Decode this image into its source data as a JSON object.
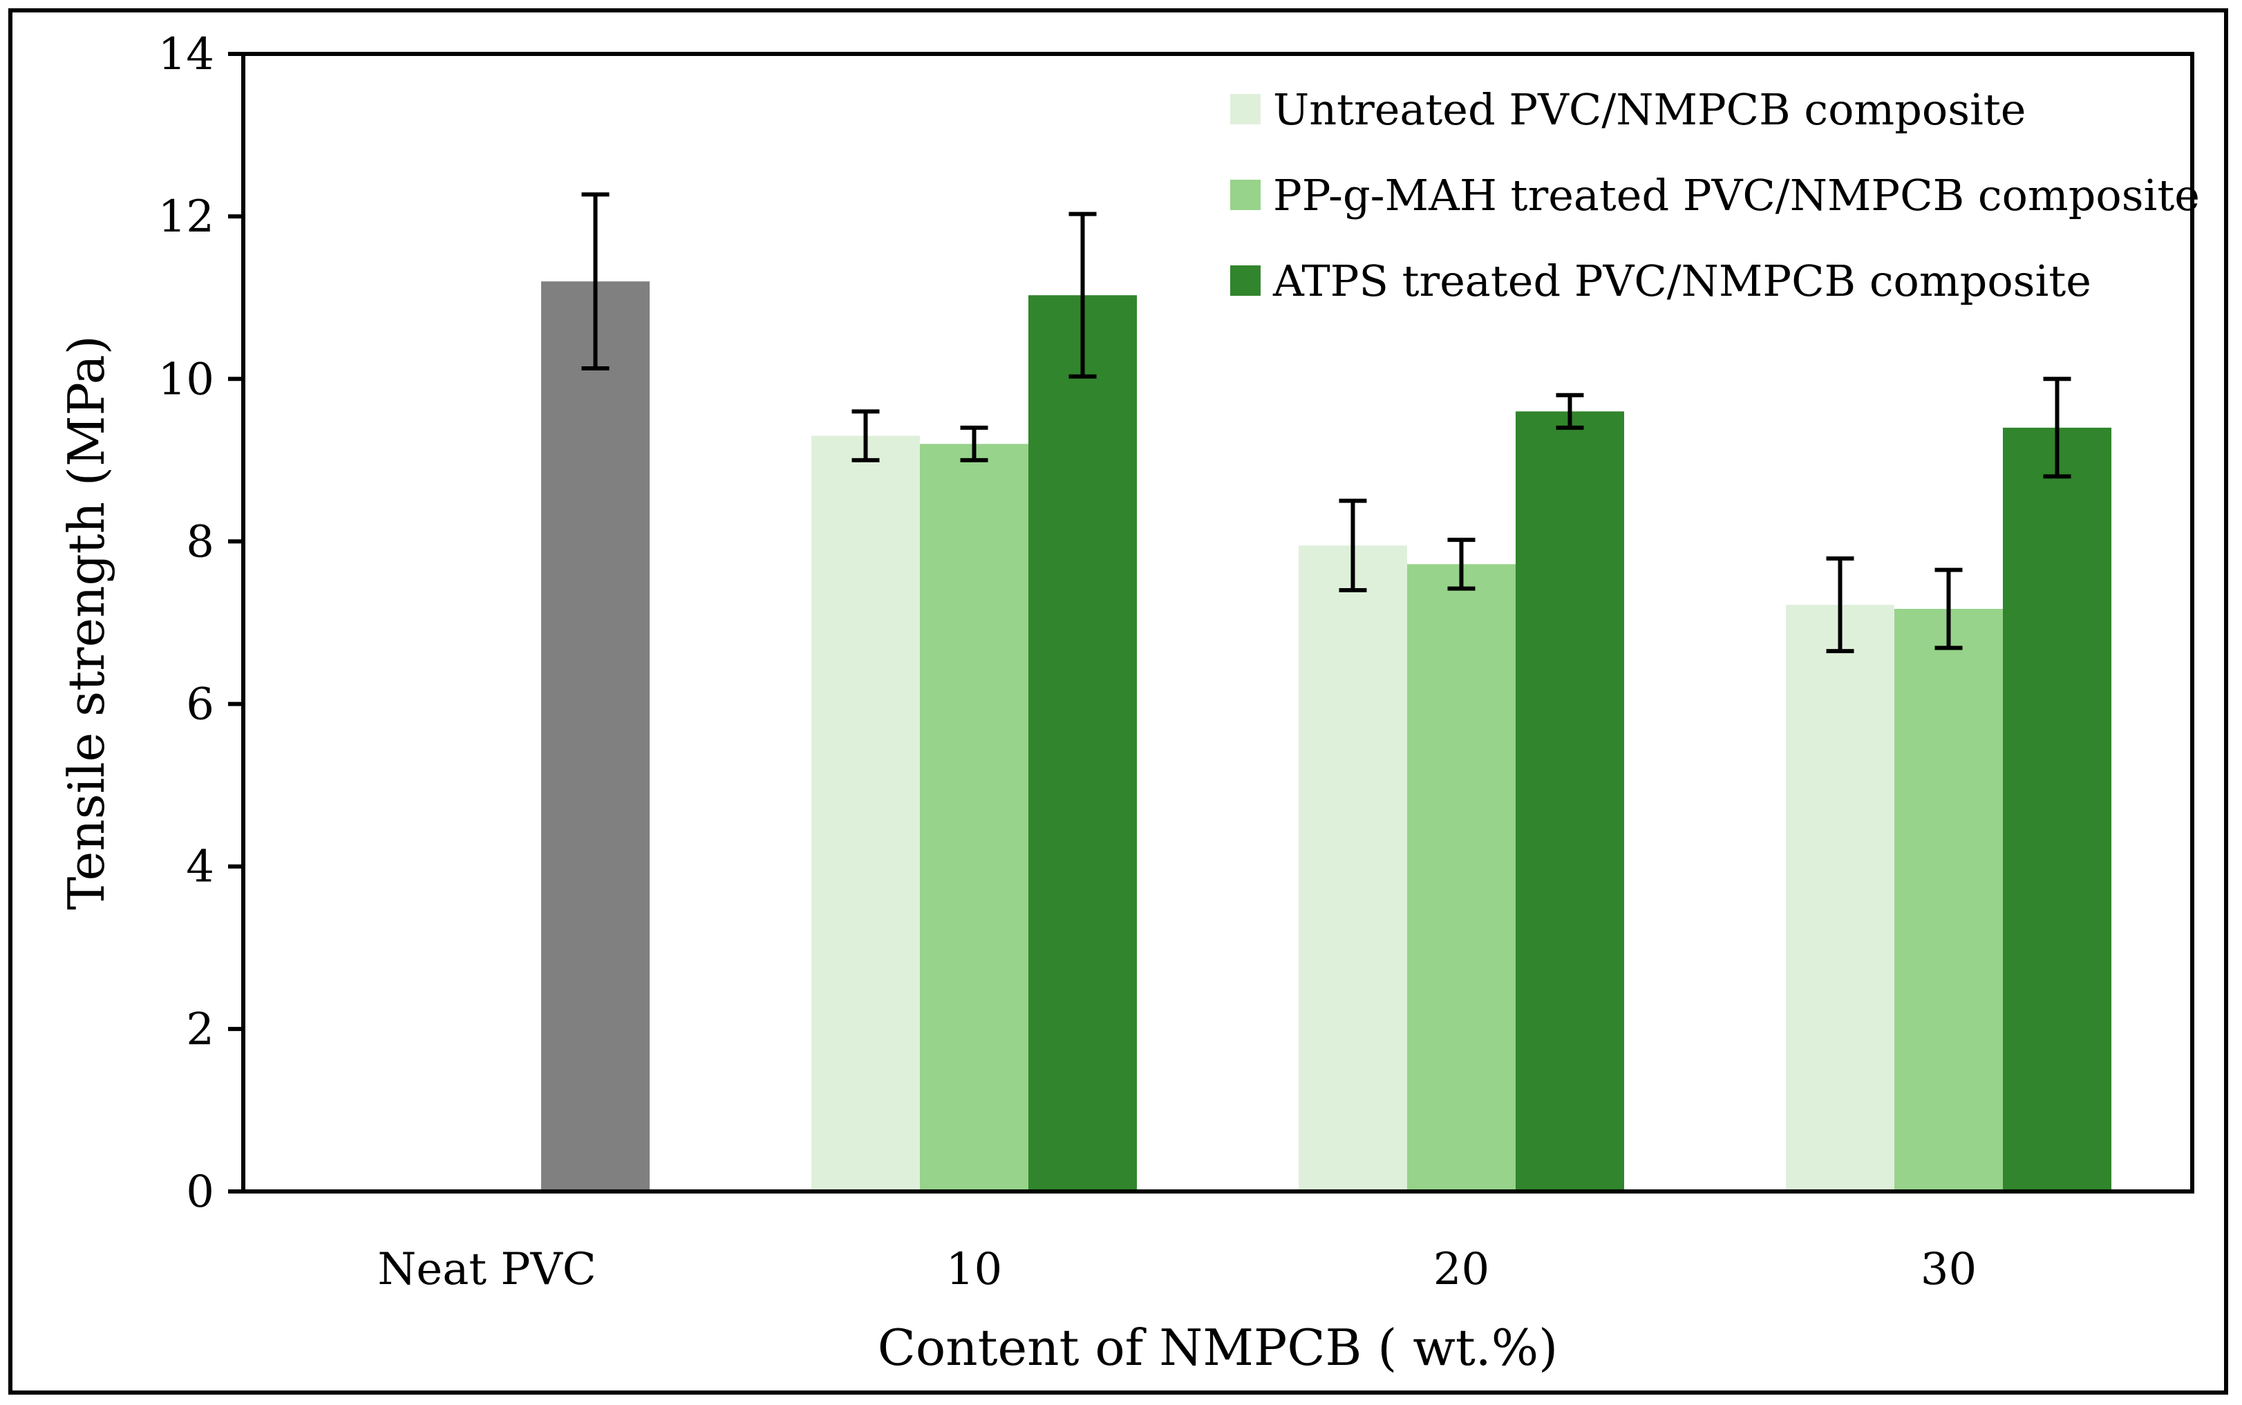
{
  "chart_data": {
    "type": "bar",
    "title": "",
    "xlabel": "Content of NMPCB ( wt.%)",
    "ylabel": "Tensile strength (MPa)",
    "ylim": [
      0,
      14
    ],
    "yticks": [
      0,
      2,
      4,
      6,
      8,
      10,
      12,
      14
    ],
    "grid": false,
    "legend_position": "top-right",
    "categories": [
      "Neat PVC",
      "10",
      "20",
      "30"
    ],
    "neat": {
      "category": "Neat PVC",
      "value": 11.2,
      "error": 1.07,
      "color": "#808080"
    },
    "series": [
      {
        "name": "Untreated PVC/NMPCB composite",
        "color": "#dff0da",
        "values": [
          null,
          9.3,
          7.95,
          7.22
        ],
        "errors": [
          null,
          0.3,
          0.55,
          0.57
        ]
      },
      {
        "name": "PP-g-MAH treated PVC/NMPCB composite",
        "color": "#97d38a",
        "values": [
          null,
          9.2,
          7.72,
          7.17
        ],
        "errors": [
          null,
          0.2,
          0.3,
          0.48
        ]
      },
      {
        "name": "ATPS treated PVC/NMPCB composite",
        "color": "#31852c",
        "values": [
          null,
          11.03,
          9.6,
          9.4
        ],
        "errors": [
          null,
          1.0,
          0.2,
          0.6
        ]
      }
    ]
  }
}
